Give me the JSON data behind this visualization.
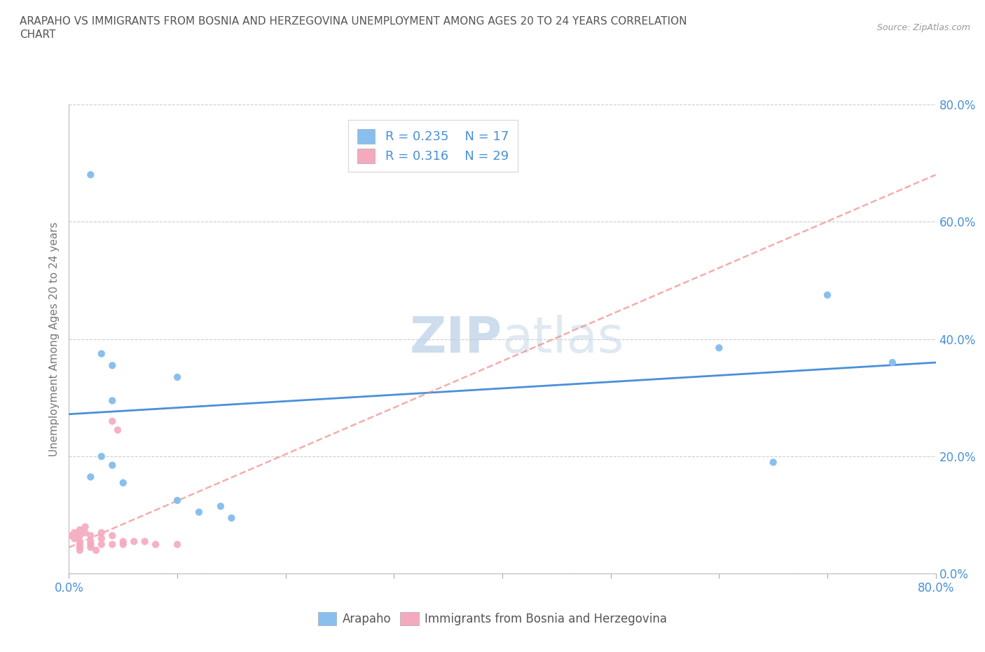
{
  "title_line1": "ARAPAHO VS IMMIGRANTS FROM BOSNIA AND HERZEGOVINA UNEMPLOYMENT AMONG AGES 20 TO 24 YEARS CORRELATION",
  "title_line2": "CHART",
  "source": "Source: ZipAtlas.com",
  "ylabel": "Unemployment Among Ages 20 to 24 years",
  "xlim": [
    0.0,
    0.8
  ],
  "ylim": [
    0.0,
    0.8
  ],
  "ytick_values": [
    0.0,
    0.2,
    0.4,
    0.6,
    0.8
  ],
  "ytick_labels": [
    "0.0%",
    "20.0%",
    "40.0%",
    "60.0%",
    "80.0%"
  ],
  "xtick_minor_values": [
    0.0,
    0.1,
    0.2,
    0.3,
    0.4,
    0.5,
    0.6,
    0.7,
    0.8
  ],
  "arapaho_scatter": [
    [
      0.02,
      0.68
    ],
    [
      0.03,
      0.375
    ],
    [
      0.04,
      0.355
    ],
    [
      0.1,
      0.335
    ],
    [
      0.04,
      0.295
    ],
    [
      0.03,
      0.2
    ],
    [
      0.04,
      0.185
    ],
    [
      0.02,
      0.165
    ],
    [
      0.05,
      0.155
    ],
    [
      0.1,
      0.125
    ],
    [
      0.14,
      0.115
    ],
    [
      0.12,
      0.105
    ],
    [
      0.15,
      0.095
    ],
    [
      0.6,
      0.385
    ],
    [
      0.65,
      0.19
    ],
    [
      0.7,
      0.475
    ],
    [
      0.76,
      0.36
    ]
  ],
  "bosnia_scatter": [
    [
      0.0,
      0.065
    ],
    [
      0.005,
      0.07
    ],
    [
      0.005,
      0.06
    ],
    [
      0.01,
      0.075
    ],
    [
      0.01,
      0.065
    ],
    [
      0.01,
      0.055
    ],
    [
      0.01,
      0.05
    ],
    [
      0.01,
      0.045
    ],
    [
      0.01,
      0.04
    ],
    [
      0.015,
      0.08
    ],
    [
      0.015,
      0.07
    ],
    [
      0.02,
      0.065
    ],
    [
      0.02,
      0.055
    ],
    [
      0.02,
      0.05
    ],
    [
      0.02,
      0.045
    ],
    [
      0.025,
      0.04
    ],
    [
      0.03,
      0.07
    ],
    [
      0.03,
      0.06
    ],
    [
      0.03,
      0.05
    ],
    [
      0.04,
      0.065
    ],
    [
      0.04,
      0.05
    ],
    [
      0.04,
      0.26
    ],
    [
      0.045,
      0.245
    ],
    [
      0.05,
      0.055
    ],
    [
      0.05,
      0.05
    ],
    [
      0.06,
      0.055
    ],
    [
      0.07,
      0.055
    ],
    [
      0.08,
      0.05
    ],
    [
      0.1,
      0.05
    ]
  ],
  "arapaho_color": "#89BFEE",
  "bosnia_color": "#F4AABE",
  "arapaho_line_color": "#4A90D9",
  "bosnia_line_color": "#F08080",
  "arapaho_trend_x": [
    0.0,
    0.8
  ],
  "arapaho_trend_y": [
    0.272,
    0.36
  ],
  "bosnia_trend_x": [
    0.0,
    0.8
  ],
  "bosnia_trend_y": [
    0.045,
    0.68
  ],
  "R_arapaho": "0.235",
  "N_arapaho": "17",
  "R_bosnia": "0.316",
  "N_bosnia": "29",
  "watermark_zip": "ZIP",
  "watermark_atlas": "atlas",
  "background_color": "#ffffff",
  "grid_color": "#cccccc",
  "legend_label_arapaho": "Arapaho",
  "legend_label_bosnia": "Immigrants from Bosnia and Herzegovina",
  "title_color": "#555555",
  "axis_tick_color": "#4A90D9",
  "scatter_size": 55
}
